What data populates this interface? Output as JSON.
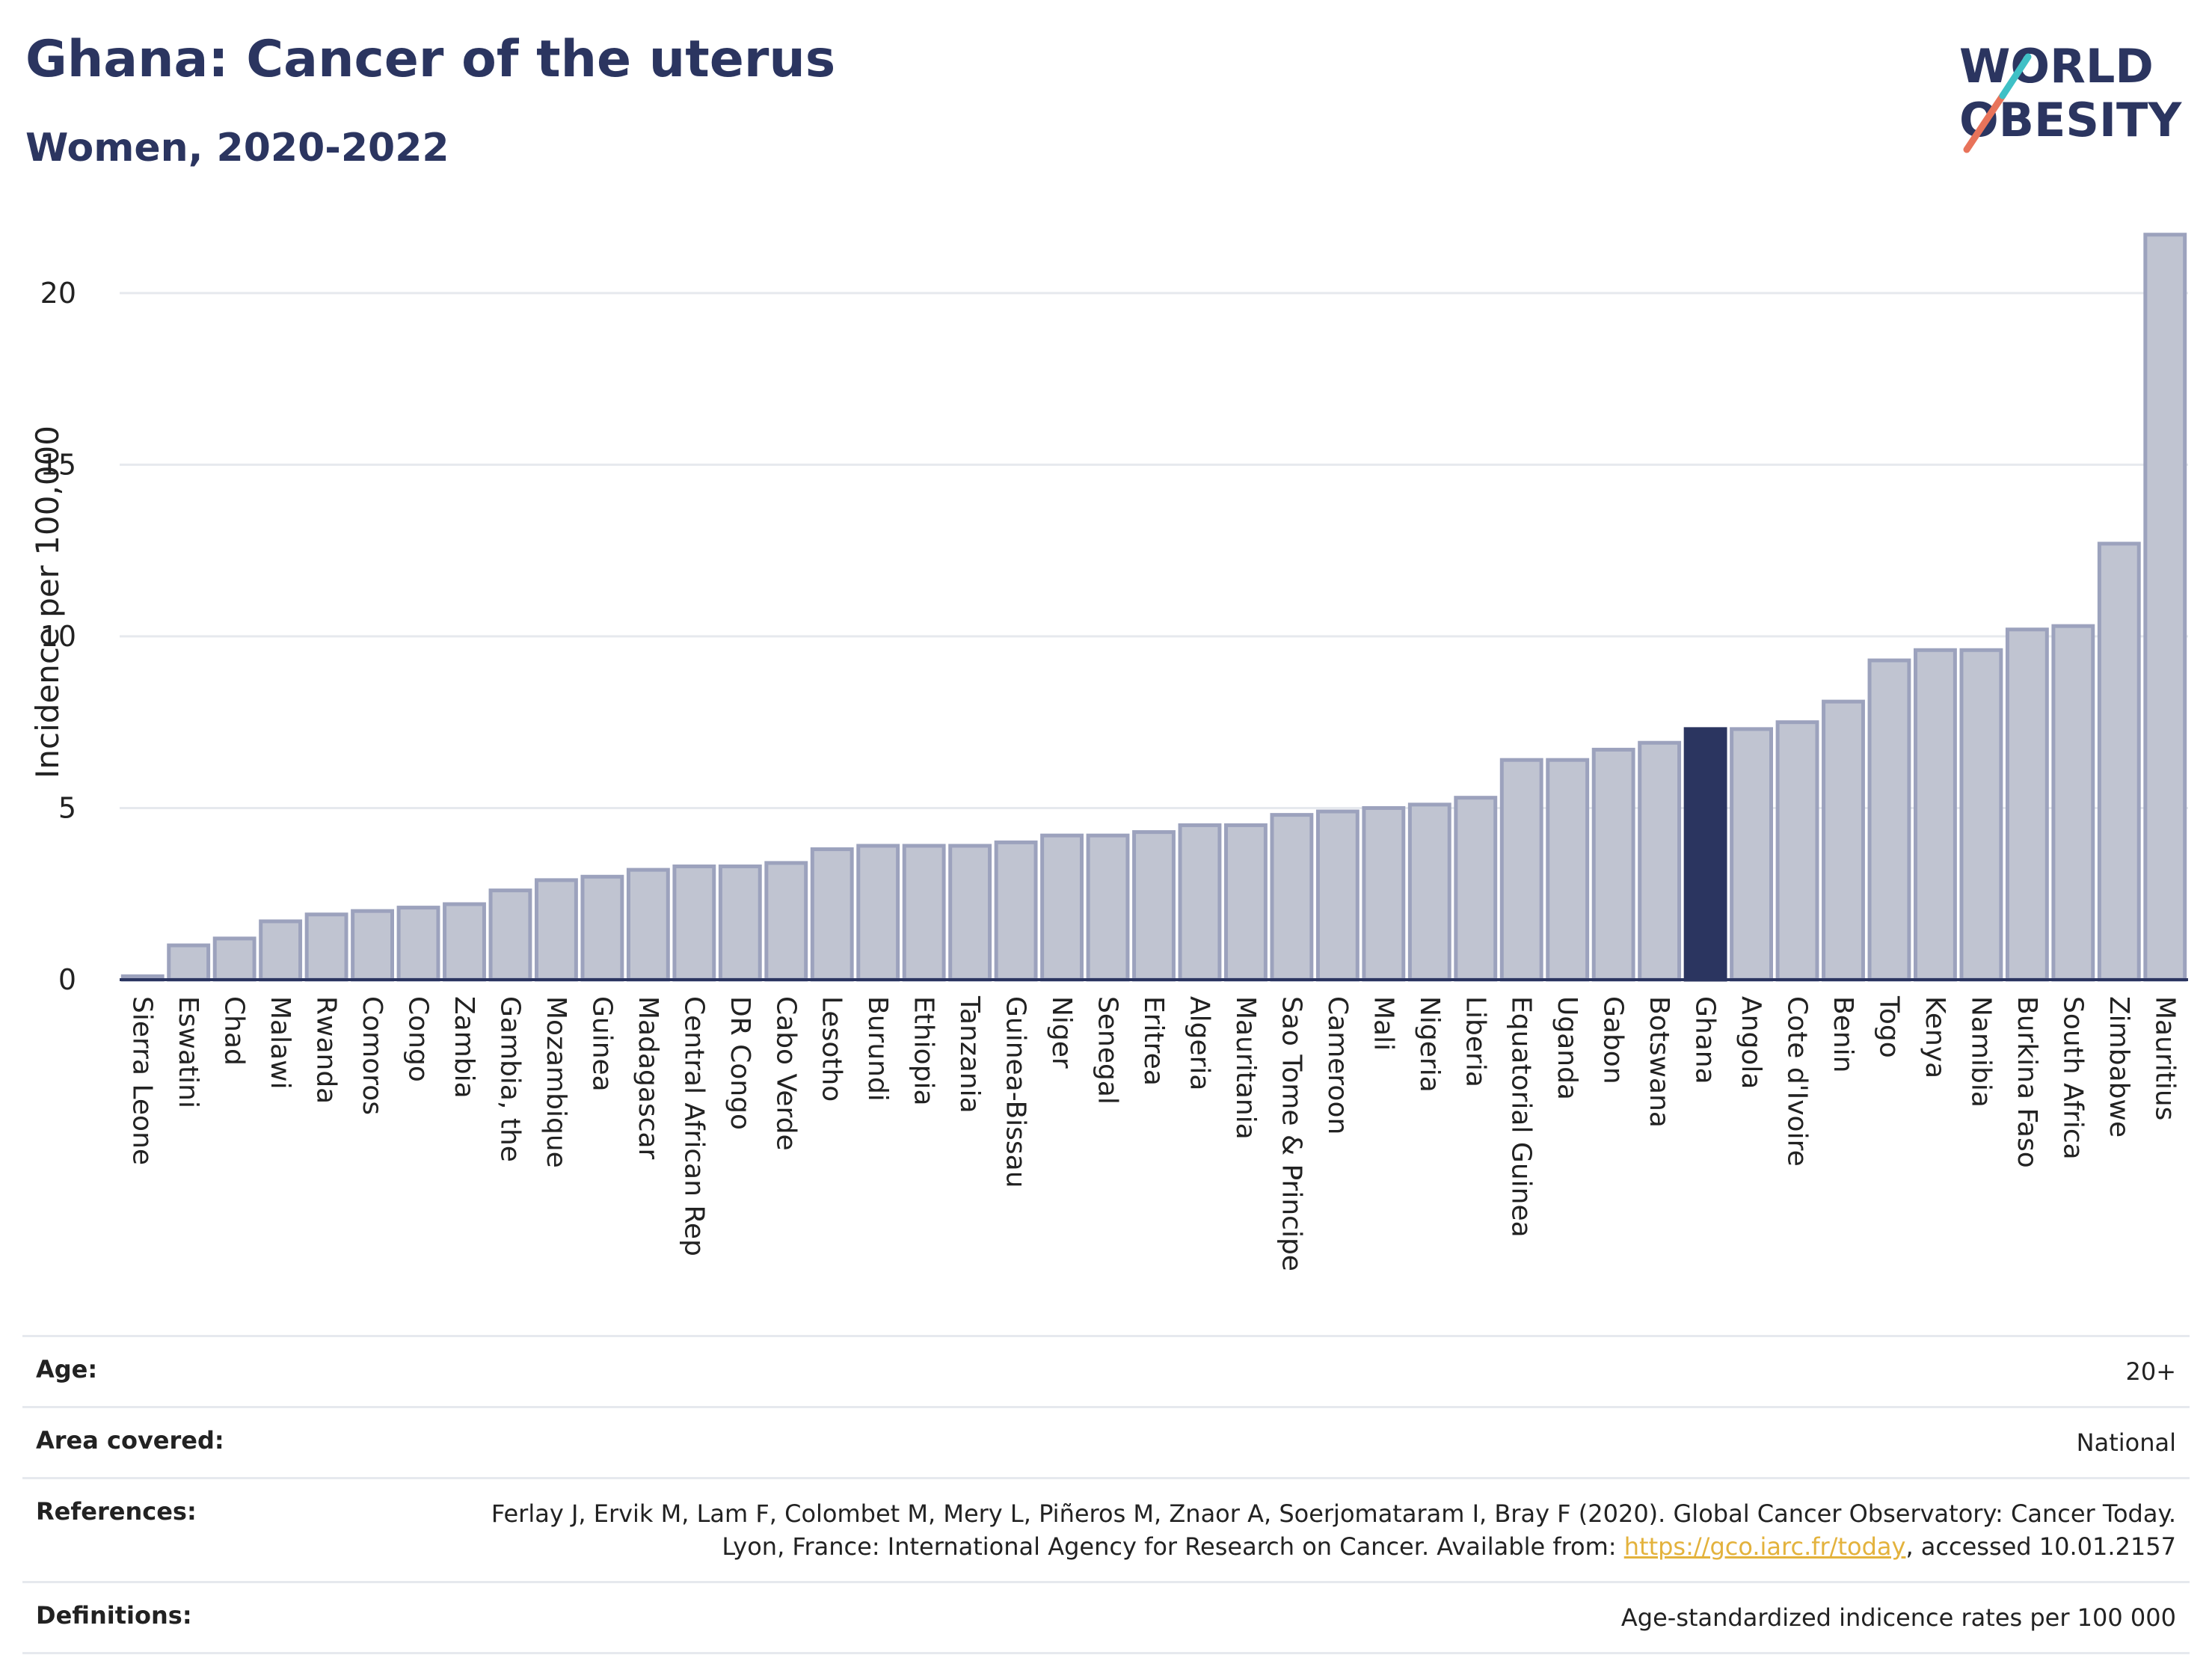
{
  "header": {
    "title": "Ghana: Cancer of the uterus",
    "subtitle": "Women, 2020-2022"
  },
  "logo": {
    "line1": "WORLD",
    "line2": "OBESITY",
    "colors": [
      "#2b3560",
      "#e8735a",
      "#3fc0c6"
    ]
  },
  "colors": {
    "highlight": "#2b3560",
    "bar_fill": "#c0c4d1",
    "bar_stroke": "#9ca2bd",
    "grid": "#e6e9ee"
  },
  "chart_data": {
    "type": "bar",
    "ylabel": "Incidence per 100,000",
    "ylim": [
      0,
      22
    ],
    "yticks": [
      0,
      5,
      10,
      15,
      20
    ],
    "highlight": "Ghana",
    "categories": [
      "Sierra Leone",
      "Eswatini",
      "Chad",
      "Malawi",
      "Rwanda",
      "Comoros",
      "Congo",
      "Zambia",
      "Gambia, the",
      "Mozambique",
      "Guinea",
      "Madagascar",
      "Central African Rep",
      "DR Congo",
      "Cabo Verde",
      "Lesotho",
      "Burundi",
      "Ethiopia",
      "Tanzania",
      "Guinea-Bissau",
      "Niger",
      "Senegal",
      "Eritrea",
      "Algeria",
      "Mauritania",
      "Sao Tome & Principe",
      "Cameroon",
      "Mali",
      "Nigeria",
      "Liberia",
      "Equatorial Guinea",
      "Uganda",
      "Gabon",
      "Botswana",
      "Ghana",
      "Angola",
      "Cote d'Ivoire",
      "Benin",
      "Togo",
      "Kenya",
      "Namibia",
      "Burkina Faso",
      "South Africa",
      "Zimbabwe",
      "Mauritius"
    ],
    "values": [
      0.1,
      1.0,
      1.2,
      1.7,
      1.9,
      2.0,
      2.1,
      2.2,
      2.6,
      2.9,
      3.0,
      3.2,
      3.3,
      3.3,
      3.4,
      3.8,
      3.9,
      3.9,
      3.9,
      4.0,
      4.2,
      4.2,
      4.3,
      4.5,
      4.5,
      4.8,
      4.9,
      5.0,
      5.1,
      5.3,
      6.4,
      6.4,
      6.7,
      6.9,
      7.3,
      7.3,
      7.5,
      8.1,
      9.3,
      9.6,
      9.6,
      10.2,
      10.3,
      12.7,
      21.7
    ]
  },
  "info": {
    "age_label": "Age:",
    "age_value": "20+",
    "area_label": "Area covered:",
    "area_value": "National",
    "references_label": "References:",
    "references_text": "Ferlay J, Ervik M, Lam F, Colombet M, Mery L, Piñeros M, Znaor A, Soerjomataram I, Bray F (2020). Global Cancer Observatory: Cancer Today. Lyon, France: International Agency for Research on Cancer. Available from: ",
    "references_link": "https://gco.iarc.fr/today",
    "references_suffix": ", accessed 10.01.2157",
    "definitions_label": "Definitions:",
    "definitions_value": "Age-standardized indicence rates per 100 000"
  }
}
